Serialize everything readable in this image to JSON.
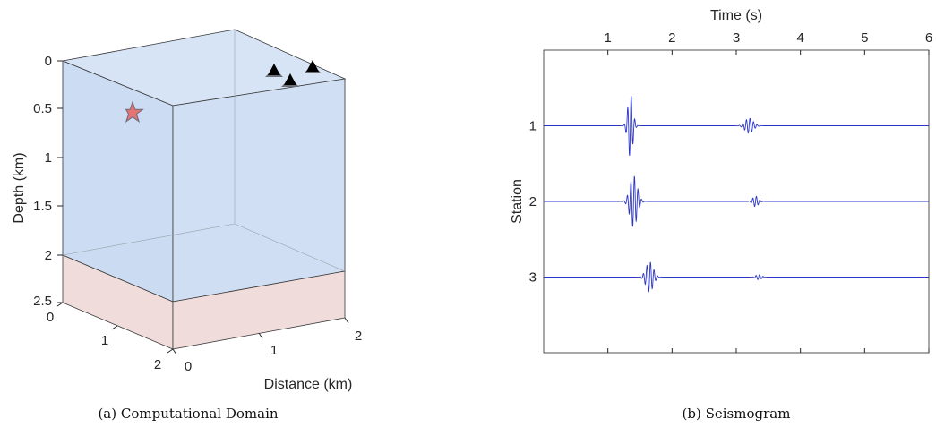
{
  "chart_data": [
    {
      "type": "scatter",
      "caption": "(a) Computational Domain",
      "zlabel": "Depth (km)",
      "xlabel": "Distance (km)",
      "ylabel": "",
      "depth_ticks": [
        "0",
        "0.5",
        "1",
        "1.5",
        "2",
        "2.5"
      ],
      "zlim": [
        0,
        2.5
      ],
      "xlim": [
        0,
        2
      ],
      "ylim": [
        0,
        2
      ],
      "x_ticks": [
        "0",
        "1",
        "2"
      ],
      "y_ticks": [
        "0",
        "1",
        "2"
      ],
      "layers": [
        {
          "depth_range": [
            0,
            2
          ],
          "color": "#cfe0f4"
        },
        {
          "depth_range": [
            2,
            2.5
          ],
          "color": "#f1dcdc"
        }
      ],
      "source": {
        "marker": "star",
        "color": "#e57373",
        "x": 0,
        "y": 0.5,
        "z": 0.6
      },
      "stations": [
        {
          "marker": "triangle",
          "color": "#000000",
          "x": 0.35,
          "y": 1.5,
          "z": 0
        },
        {
          "marker": "triangle",
          "color": "#000000",
          "x": 0.6,
          "y": 1.8,
          "z": 0
        },
        {
          "marker": "triangle",
          "color": "#000000",
          "x": 0.2,
          "y": 1.95,
          "z": 0
        }
      ]
    },
    {
      "type": "line",
      "caption": "(b) Seismogram",
      "xlabel": "Time (s)",
      "ylabel": "Station",
      "xlim": [
        0,
        6
      ],
      "ylim": [
        0,
        4
      ],
      "x_ticks": [
        "1",
        "2",
        "3",
        "4",
        "5",
        "6"
      ],
      "y_ticks": [
        "1",
        "2",
        "3"
      ],
      "line_color": "#2b35c8",
      "series": [
        {
          "name": "1",
          "wavelets": [
            {
              "t": 1.35,
              "amp": 0.42,
              "width": 0.055,
              "freq": 18
            },
            {
              "t": 3.2,
              "amp": 0.1,
              "width": 0.09,
              "freq": 18
            }
          ]
        },
        {
          "name": "2",
          "wavelets": [
            {
              "t": 1.4,
              "amp": 0.34,
              "width": 0.08,
              "freq": 18
            },
            {
              "t": 3.3,
              "amp": 0.07,
              "width": 0.06,
              "freq": 18
            }
          ]
        },
        {
          "name": "3",
          "wavelets": [
            {
              "t": 1.65,
              "amp": 0.2,
              "width": 0.08,
              "freq": 18
            },
            {
              "t": 3.35,
              "amp": 0.035,
              "width": 0.06,
              "freq": 18
            }
          ]
        }
      ]
    }
  ]
}
